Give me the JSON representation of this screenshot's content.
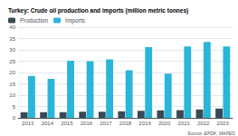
{
  "chart_data": {
    "type": "bar",
    "title": "Turkey: Crude oil production and imports (million metric tonnes)",
    "categories": [
      "2013",
      "2014",
      "2015",
      "2016",
      "2017",
      "2018",
      "2019",
      "2020",
      "2021",
      "2022",
      "2023"
    ],
    "series": [
      {
        "name": "Production",
        "color": "#374955",
        "values": [
          2.5,
          2.5,
          2.5,
          2.7,
          2.7,
          2.9,
          3.1,
          3.3,
          3.4,
          3.7,
          4.1
        ]
      },
      {
        "name": "Imports",
        "color": "#29b6d8",
        "values": [
          18.5,
          17.2,
          25.2,
          25.0,
          25.8,
          21.0,
          31.2,
          19.5,
          31.5,
          33.5,
          31.5
        ]
      }
    ],
    "ylim": [
      0,
      40
    ],
    "yticks": [
      0,
      5,
      10,
      15,
      20,
      25,
      30,
      35,
      40
    ],
    "grid": true,
    "legend": "upper left",
    "annotations": [
      "Source: EPDK, MAPEG"
    ]
  }
}
